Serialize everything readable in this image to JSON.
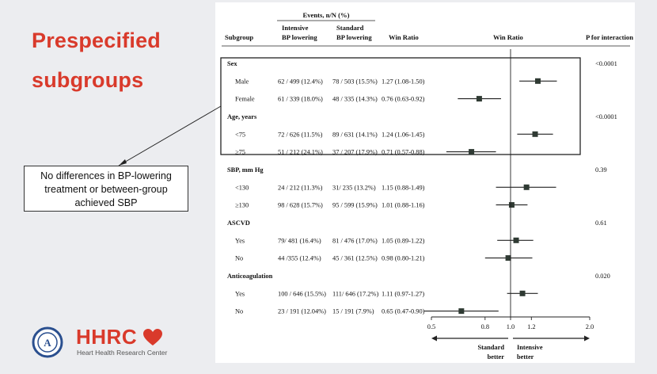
{
  "slide": {
    "title_line1": "Prespecified",
    "title_line2": "subgroups",
    "callout": [
      "No differences in BP-lowering",
      "treatment or between-group",
      "achieved SBP"
    ],
    "logo": {
      "name": "HHRC",
      "subtitle": "Heart Health Research Center",
      "seal_letter": "A"
    }
  },
  "table": {
    "header_events": "Events, n/N (%)",
    "col_subgroup": "Subgroup",
    "col_intensive": [
      "Intensive",
      "BP lowering"
    ],
    "col_standard": [
      "Standard",
      "BP lowering"
    ],
    "col_winratio": "Win Ratio",
    "col_plot": "Win Ratio",
    "col_pinteraction": "P for interaction"
  },
  "chart_data": {
    "type": "forest",
    "x_scale": "log",
    "xlim": [
      0.5,
      2.0
    ],
    "x_ticks": [
      0.5,
      0.8,
      1.0,
      1.2,
      2.0
    ],
    "x_tick_labels": [
      "0.5",
      "0.8",
      "1.0",
      "1.2",
      "2.0"
    ],
    "reference_line": 1.0,
    "arrow_left_label": [
      "Standard",
      "better"
    ],
    "arrow_right_label": [
      "Intensive",
      "better"
    ],
    "groups": [
      {
        "name": "Sex",
        "p": "<0.0001",
        "rows": [
          {
            "label": "Male",
            "intensive": "62 / 499 (12.4%)",
            "standard": "78 / 503 (15.5%)",
            "wr_text": "1.27 (1.08-1.50)",
            "wr": 1.27,
            "lo": 1.08,
            "hi": 1.5
          },
          {
            "label": "Female",
            "intensive": "61 / 339 (18.0%)",
            "standard": "48 / 335 (14.3%)",
            "wr_text": "0.76 (0.63-0.92)",
            "wr": 0.76,
            "lo": 0.63,
            "hi": 0.92
          }
        ]
      },
      {
        "name": "Age, years",
        "p": "<0.0001",
        "rows": [
          {
            "label": "<75",
            "intensive": "72 / 626 (11.5%)",
            "standard": "89 / 631 (14.1%)",
            "wr_text": "1.24 (1.06-1.45)",
            "wr": 1.24,
            "lo": 1.06,
            "hi": 1.45
          },
          {
            "label": "≥75",
            "intensive": "51 / 212 (24.1%)",
            "standard": "37 / 207 (17.9%)",
            "wr_text": "0.71 (0.57-0.88)",
            "wr": 0.71,
            "lo": 0.57,
            "hi": 0.88
          }
        ]
      },
      {
        "name": "SBP, mm Hg",
        "p": "0.39",
        "rows": [
          {
            "label": "<130",
            "intensive": "24 / 212 (11.3%)",
            "standard": "31/ 235 (13.2%)",
            "wr_text": "1.15 (0.88-1.49)",
            "wr": 1.15,
            "lo": 0.88,
            "hi": 1.49
          },
          {
            "label": "≥130",
            "intensive": "98 / 628 (15.7%)",
            "standard": "95 / 599 (15.9%)",
            "wr_text": "1.01 (0.88-1.16)",
            "wr": 1.01,
            "lo": 0.88,
            "hi": 1.16
          }
        ]
      },
      {
        "name": "ASCVD",
        "p": "0.61",
        "rows": [
          {
            "label": "Yes",
            "intensive": "79/ 481 (16.4%)",
            "standard": "81 / 476 (17.0%)",
            "wr_text": "1.05 (0.89-1.22)",
            "wr": 1.05,
            "lo": 0.89,
            "hi": 1.22
          },
          {
            "label": "No",
            "intensive": "44 /355 (12.4%)",
            "standard": "45 / 361 (12.5%)",
            "wr_text": "0.98 (0.80-1.21)",
            "wr": 0.98,
            "lo": 0.8,
            "hi": 1.21
          }
        ]
      },
      {
        "name": "Anticoagulation",
        "p": "0.020",
        "rows": [
          {
            "label": "Yes",
            "intensive": "100 / 646 (15.5%)",
            "standard": "111/ 646 (17.2%)",
            "wr_text": "1.11 (0.97-1.27)",
            "wr": 1.11,
            "lo": 0.97,
            "hi": 1.27
          },
          {
            "label": "No",
            "intensive": "23 / 191 (12.04%)",
            "standard": "15 / 191 (7.9%)",
            "wr_text": "0.65 (0.47-0.90)",
            "wr": 0.65,
            "lo": 0.47,
            "hi": 0.9
          }
        ]
      }
    ]
  },
  "colors": {
    "title": "#d93a2b",
    "marker": "#2f3a33",
    "text": "#111111"
  }
}
